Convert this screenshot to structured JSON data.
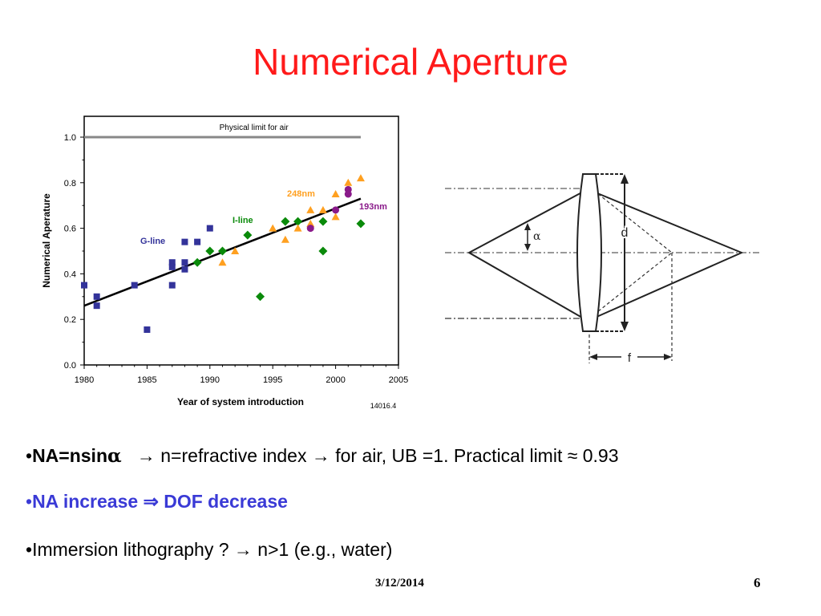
{
  "slide": {
    "title": "Numerical Aperture",
    "date": "3/12/2014",
    "page": "6"
  },
  "bullets": {
    "b1_marker": "•",
    "b1_bold": "NA=nsin",
    "b1_alpha": "α",
    "b1_arrow1": "→",
    "b1_text1": "n=refractive index",
    "b1_arrow2": "→",
    "b1_text2": "for air, UB =1. Practical limit ≈ 0.93",
    "b2_marker": "•",
    "b2_text1": "NA increase",
    "b2_implies": "⇒",
    "b2_text2": "DOF decrease",
    "b3_marker": "•",
    "b3_text1": "Immersion lithography ?",
    "b3_arrow": "→",
    "b3_text2": "n>1 (e.g., water)"
  },
  "lens_diagram": {
    "alpha_label": "α",
    "d_label": "d",
    "f_label": "f"
  },
  "colors": {
    "title": "#ff1a1a",
    "gline": "#33339a",
    "iline": "#0a8a0a",
    "nm248": "#ffa020",
    "nm193": "#8a1a8a",
    "limit": "#888888"
  },
  "chart_data": {
    "type": "scatter",
    "xlabel": "Year of system introduction",
    "ylabel": "Numerical Aperature",
    "xlim": [
      1980,
      2005
    ],
    "ylim": [
      0.0,
      1.0
    ],
    "xticks": [
      "1980",
      "1985",
      "1990",
      "1995",
      "2000",
      "2005"
    ],
    "yticks": [
      "0.0",
      "0.2",
      "0.4",
      "0.6",
      "0.8",
      "1.0"
    ],
    "code": "14016.4",
    "reference_line": {
      "label": "Physical limit for air",
      "y": 1.0,
      "x_range": [
        1980,
        2002
      ]
    },
    "trend_line": {
      "x": [
        1980,
        2002
      ],
      "y": [
        0.26,
        0.73
      ]
    },
    "series": [
      {
        "name": "G-line",
        "marker": "square",
        "color": "#33339a",
        "points": [
          [
            1980,
            0.35
          ],
          [
            1981,
            0.3
          ],
          [
            1981,
            0.26
          ],
          [
            1984,
            0.35
          ],
          [
            1985,
            0.155
          ],
          [
            1987,
            0.45
          ],
          [
            1987,
            0.43
          ],
          [
            1987,
            0.35
          ],
          [
            1988,
            0.54
          ],
          [
            1988,
            0.45
          ],
          [
            1988,
            0.42
          ],
          [
            1989,
            0.54
          ],
          [
            1990,
            0.6
          ]
        ]
      },
      {
        "name": "I-line",
        "marker": "diamond",
        "color": "#0a8a0a",
        "points": [
          [
            1989,
            0.45
          ],
          [
            1990,
            0.5
          ],
          [
            1991,
            0.5
          ],
          [
            1993,
            0.57
          ],
          [
            1994,
            0.3
          ],
          [
            1996,
            0.63
          ],
          [
            1997,
            0.63
          ],
          [
            1999,
            0.63
          ],
          [
            1999,
            0.5
          ],
          [
            2002,
            0.62
          ]
        ]
      },
      {
        "name": "248nm",
        "marker": "triangle",
        "color": "#ffa020",
        "points": [
          [
            1991,
            0.45
          ],
          [
            1992,
            0.5
          ],
          [
            1995,
            0.6
          ],
          [
            1996,
            0.55
          ],
          [
            1997,
            0.6
          ],
          [
            1998,
            0.62
          ],
          [
            1998,
            0.68
          ],
          [
            1999,
            0.68
          ],
          [
            2000,
            0.65
          ],
          [
            2000,
            0.75
          ],
          [
            2001,
            0.8
          ],
          [
            2002,
            0.82
          ]
        ]
      },
      {
        "name": "193nm",
        "marker": "circle",
        "color": "#8a1a8a",
        "points": [
          [
            1998,
            0.6
          ],
          [
            2000,
            0.68
          ],
          [
            2001,
            0.75
          ],
          [
            2001,
            0.77
          ]
        ]
      }
    ]
  }
}
